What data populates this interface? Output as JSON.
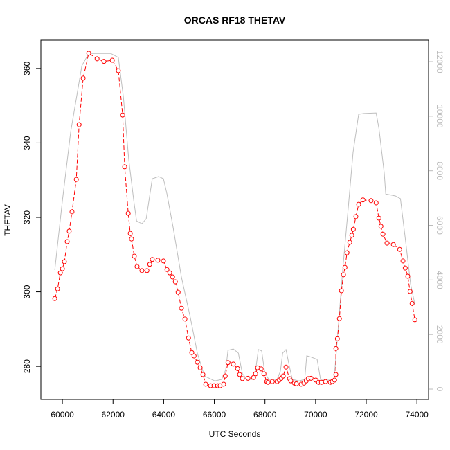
{
  "chart_data": {
    "type": "line",
    "title": "ORCAS RF18 THETAV",
    "x_label": "UTC Seconds",
    "y_label": "THETAV",
    "xlim": [
      59150,
      74460
    ],
    "ylim": [
      271.1,
      367.6
    ],
    "y2lim": [
      -380,
      12787
    ],
    "xticks": [
      60000,
      62000,
      64000,
      66000,
      68000,
      70000,
      72000,
      74000
    ],
    "yticks": [
      280,
      300,
      320,
      340,
      360
    ],
    "y2ticks": [
      0,
      2000,
      4000,
      6000,
      8000,
      10000,
      12000
    ],
    "series": [
      {
        "color": "#ff0000",
        "markers": true,
        "x": [
          59700,
          59810,
          59920,
          60000,
          60080,
          60190,
          60270,
          60380,
          60550,
          60660,
          60820,
          61040,
          61370,
          61640,
          61970,
          62210,
          62380,
          62460,
          62600,
          62680,
          62730,
          62840,
          62950,
          63140,
          63340,
          63450,
          63550,
          63770,
          63990,
          64130,
          64240,
          64350,
          64460,
          64570,
          64700,
          64840,
          64980,
          65110,
          65200,
          65330,
          65440,
          65550,
          65660,
          65850,
          65990,
          66130,
          66230,
          66370,
          66430,
          66540,
          66750,
          66920,
          67000,
          67110,
          67330,
          67550,
          67630,
          67710,
          67850,
          67960,
          68070,
          68120,
          68290,
          68480,
          68560,
          68640,
          68720,
          68830,
          68970,
          69020,
          69160,
          69240,
          69430,
          69540,
          69630,
          69710,
          69820,
          70010,
          70120,
          70230,
          70390,
          70580,
          70660,
          70750,
          70800,
          70800,
          70860,
          70940,
          71020,
          71100,
          71160,
          71240,
          71350,
          71430,
          71490,
          71590,
          71700,
          71870,
          72190,
          72390,
          72500,
          72580,
          72660,
          72820,
          73070,
          73320,
          73450,
          73540,
          73640,
          73730,
          73810,
          73920
        ],
        "values": [
          298.2,
          300.8,
          305.1,
          306.2,
          308.1,
          313.5,
          316.3,
          321.5,
          330.2,
          344.9,
          357.4,
          364.1,
          362.6,
          361.9,
          362.2,
          359.4,
          347.5,
          333.6,
          321.1,
          315.7,
          314.2,
          309.6,
          306.8,
          305.7,
          305.7,
          307.4,
          308.7,
          308.5,
          308.3,
          306.0,
          305.1,
          304.0,
          302.7,
          299.9,
          295.6,
          292.7,
          287.6,
          283.7,
          282.8,
          281.1,
          279.6,
          277.8,
          275.2,
          274.8,
          274.8,
          274.8,
          274.8,
          275.2,
          277.4,
          281.0,
          280.6,
          279.4,
          277.8,
          276.7,
          276.8,
          277.0,
          278.0,
          279.6,
          279.3,
          278.0,
          275.9,
          275.7,
          275.9,
          275.9,
          276.3,
          276.8,
          277.4,
          279.8,
          276.7,
          276.1,
          275.5,
          275.3,
          275.2,
          275.5,
          276.1,
          276.7,
          276.8,
          276.3,
          275.7,
          275.7,
          275.9,
          275.7,
          275.9,
          276.3,
          277.8,
          284.8,
          287.4,
          292.8,
          300.3,
          304.6,
          306.6,
          310.5,
          313.3,
          315.2,
          316.8,
          320.2,
          323.5,
          324.7,
          324.5,
          323.9,
          319.8,
          317.6,
          315.5,
          313.1,
          312.7,
          311.4,
          308.3,
          306.4,
          304.2,
          300.1,
          296.9,
          292.5
        ]
      },
      {
        "color": "#bebebe",
        "axis": "y2",
        "markers": false,
        "x": [
          59700,
          60000,
          60330,
          60770,
          61040,
          61910,
          62210,
          62410,
          62620,
          62820,
          62930,
          63140,
          63310,
          63550,
          63800,
          63990,
          64130,
          64380,
          64700,
          65060,
          65330,
          65610,
          66020,
          66290,
          66450,
          66540,
          66750,
          66950,
          67110,
          67300,
          67550,
          67630,
          67740,
          67870,
          67990,
          68150,
          68480,
          68610,
          68700,
          68830,
          68970,
          69080,
          69350,
          69570,
          69650,
          69840,
          70060,
          70200,
          70520,
          70710,
          70770,
          70880,
          71070,
          71290,
          71480,
          71700,
          71910,
          72390,
          72500,
          72710,
          72770,
          73150,
          73350,
          73560,
          73750,
          73920
        ],
        "values": [
          4364,
          6900,
          9440,
          11850,
          12300,
          12300,
          12150,
          10700,
          8420,
          6900,
          6160,
          6060,
          6240,
          7710,
          7790,
          7710,
          7150,
          5890,
          4110,
          2590,
          1320,
          480,
          300,
          355,
          710,
          1420,
          1470,
          1320,
          560,
          355,
          355,
          685,
          1450,
          1400,
          610,
          355,
          355,
          660,
          1320,
          1450,
          810,
          355,
          300,
          355,
          1220,
          1170,
          1090,
          330,
          330,
          330,
          810,
          2080,
          4360,
          6650,
          8680,
          10070,
          10100,
          10120,
          9560,
          7920,
          7150,
          7080,
          6980,
          5380,
          3860,
          3100
        ]
      }
    ]
  }
}
